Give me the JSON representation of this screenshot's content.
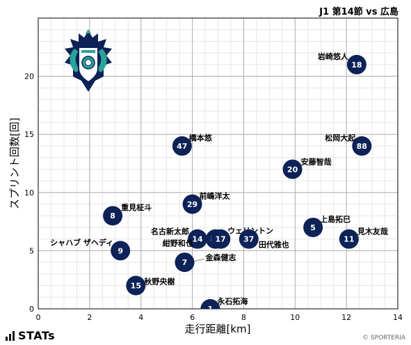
{
  "header": {
    "title": "J1 第14節 vs 広島"
  },
  "footer": {
    "brand": "STATs",
    "copyright": "© SPORTERIA"
  },
  "colors": {
    "marker": "#0d2256",
    "grid_major": "#aaaaaa",
    "grid_minor": "#e6e6e6"
  },
  "chart_data": {
    "type": "scatter",
    "xlabel": "走行距離[km]",
    "ylabel": "スプリント回数[回]",
    "xlim": [
      0,
      14
    ],
    "ylim": [
      0,
      25
    ],
    "xticks": [
      0,
      2,
      4,
      6,
      8,
      10,
      12,
      14
    ],
    "yticks": [
      0,
      5,
      10,
      15,
      20
    ],
    "grid": true,
    "points": [
      {
        "number": "18",
        "name": "岩崎悠人",
        "x": 12.4,
        "y": 21
      },
      {
        "number": "88",
        "name": "松岡大起",
        "x": 12.6,
        "y": 14
      },
      {
        "number": "47",
        "name": "橋本悠",
        "x": 5.6,
        "y": 14
      },
      {
        "number": "20",
        "name": "安藤智哉",
        "x": 9.9,
        "y": 12
      },
      {
        "number": "29",
        "name": "前嶋洋太",
        "x": 6.0,
        "y": 9
      },
      {
        "number": "8",
        "name": "重見柾斗",
        "x": 2.9,
        "y": 8
      },
      {
        "number": "5",
        "name": "上島拓巳",
        "x": 10.7,
        "y": 7
      },
      {
        "number": "11",
        "name": "見木友哉",
        "x": 12.1,
        "y": 6
      },
      {
        "number": "14",
        "name": "名古新太郎",
        "x": 6.2,
        "y": 6
      },
      {
        "number": "81",
        "name": "紺野和也",
        "x": 6.9,
        "y": 6
      },
      {
        "number": "17",
        "name": "ウェリントン",
        "x": 7.1,
        "y": 6
      },
      {
        "number": "37",
        "name": "田代雅也",
        "x": 8.2,
        "y": 6
      },
      {
        "number": "9",
        "name": "シャハブ ザヘディ",
        "x": 3.2,
        "y": 5
      },
      {
        "number": "7",
        "name": "金森健志",
        "x": 5.7,
        "y": 4
      },
      {
        "number": "15",
        "name": "秋野央樹",
        "x": 3.8,
        "y": 2
      },
      {
        "number": "1",
        "name": "永石拓海",
        "x": 6.7,
        "y": 0
      }
    ]
  }
}
